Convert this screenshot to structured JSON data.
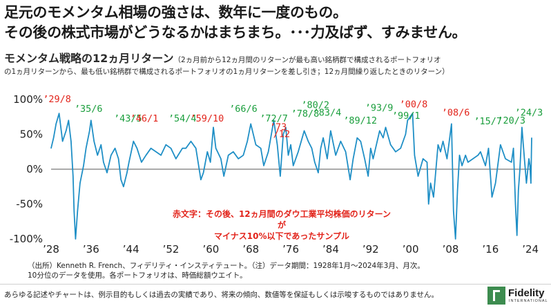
{
  "headline": {
    "line1": "足元のモメンタム相場の強さは、数年に一度のもの。",
    "line2": "その後の株式市場がどうなるかはまちまち。･･･力及ばず、すみません。"
  },
  "subtitle": {
    "main": "モメンタム戦略の12ヵ月リターン",
    "note_line1": "（2ヵ月前から12ヵ月間のリターンが最も高い銘柄群で構成されるポートフォリオ",
    "note_line2": "の1ヵ月リターンから、最も低い銘柄群で構成されるポートフォリオの1ヵ月リターンを差し引き；12ヵ月間繰り返したときのリターン）"
  },
  "callout": {
    "line1": "赤文字：その後、12ヵ月間のダウ工業平均株価のリターンが",
    "line2": "マイナス10%以下であったサンプル"
  },
  "source": {
    "line1": "（出所）Kenneth R. French、フィデリティ・インスティテュート。（注）データ期間：1928年1月～2024年3月、月次。",
    "line2": "10分位のデータを使用。各ポートフォリオは、時価総額ウエイト。"
  },
  "disclaimer": "あらゆる記述やチャートは、例示目的もしくは過去の実績であり、将来の傾向、数値等を保証もしくは示唆するものではありません。",
  "logo": {
    "name": "Fidelity",
    "sub": "INTERNATIONAL"
  },
  "colors": {
    "line": "#1f8fc6",
    "red": "#e2231a",
    "green": "#1a9e3c",
    "axis": "#555555"
  },
  "chart_data": {
    "type": "line",
    "title": "モメンタム戦略の12ヵ月リターン",
    "xlabel": "",
    "ylabel": "",
    "xlim": [
      1928,
      2024.25
    ],
    "ylim": [
      -100,
      100
    ],
    "y_ticks": [
      100,
      50,
      0,
      -50,
      -100
    ],
    "y_tick_labels": [
      "100%",
      "50%",
      "0%",
      "-50%",
      "-100%"
    ],
    "x_ticks": [
      1928,
      1936,
      1944,
      1952,
      1960,
      1968,
      1976,
      1984,
      1992,
      2000,
      2008,
      2016,
      2024
    ],
    "x_tick_labels": [
      "’28",
      "’36",
      "’44",
      "’52",
      "’60",
      "’68",
      "’76",
      "’84",
      "’92",
      "’00",
      "’08",
      "’16",
      "’24"
    ],
    "series": [
      {
        "name": "モメンタム戦略の12ヵ月リターン (%)",
        "x": [
          1928,
          1928.5,
          1929,
          1929.6,
          1930.3,
          1931,
          1931.5,
          1932,
          1932.4,
          1932.6,
          1932.9,
          1933.3,
          1933.8,
          1934.5,
          1935,
          1935.7,
          1936,
          1936.6,
          1937.3,
          1938,
          1938.5,
          1939.2,
          1940,
          1940.8,
          1941.5,
          1942,
          1942.5,
          1943.2,
          1943.6,
          1944.5,
          1945.2,
          1946.1,
          1947,
          1948,
          1949,
          1950,
          1951,
          1952,
          1953,
          1954.3,
          1955,
          1956,
          1957,
          1958,
          1958.5,
          1959.3,
          1959.9,
          1960.5,
          1961,
          1962,
          1962.6,
          1963.5,
          1964.5,
          1965.5,
          1966.5,
          1967.3,
          1968,
          1969,
          1970,
          1970.6,
          1971.5,
          1972.6,
          1973.3,
          1973.9,
          1974.5,
          1975,
          1975.5,
          1976,
          1976.5,
          1977.5,
          1978.7,
          1979.5,
          1980.2,
          1980.8,
          1981.5,
          1982,
          1982.5,
          1983.3,
          1984,
          1985,
          1986,
          1987,
          1987.9,
          1988.5,
          1989.3,
          1990,
          1990.8,
          1991.5,
          1992,
          1992.5,
          1993.8,
          1994.5,
          1995,
          1996,
          1997,
          1998,
          1999,
          1999.4,
          1999.9,
          2000.4,
          2000.8,
          2001.5,
          2002.5,
          2003.3,
          2003.6,
          2004,
          2004.6,
          2005.5,
          2006,
          2006.5,
          2007.3,
          2008.2,
          2008.6,
          2009,
          2009.4,
          2009.8,
          2010.3,
          2011,
          2011.5,
          2012.5,
          2013.5,
          2014,
          2015,
          2015.6,
          2016.3,
          2017,
          2018,
          2019,
          2020.2,
          2020.6,
          2021,
          2021.3,
          2021.6,
          2021.9,
          2022.3,
          2022.8,
          2023.2,
          2023.7,
          2023.9,
          2024.1,
          2024.25
        ],
        "values": [
          30,
          45,
          65,
          80,
          40,
          55,
          70,
          40,
          -10,
          -60,
          -100,
          -60,
          -20,
          5,
          30,
          55,
          70,
          40,
          20,
          35,
          10,
          -5,
          20,
          30,
          15,
          -15,
          -25,
          -5,
          10,
          40,
          30,
          10,
          20,
          30,
          25,
          20,
          35,
          30,
          15,
          30,
          30,
          40,
          30,
          -15,
          -5,
          25,
          10,
          60,
          30,
          15,
          -10,
          20,
          25,
          15,
          20,
          40,
          65,
          35,
          30,
          5,
          25,
          70,
          35,
          -10,
          50,
          60,
          20,
          35,
          5,
          25,
          55,
          40,
          30,
          10,
          -5,
          30,
          45,
          15,
          55,
          20,
          40,
          25,
          -15,
          15,
          45,
          40,
          15,
          -10,
          30,
          15,
          55,
          45,
          60,
          35,
          25,
          30,
          50,
          70,
          75,
          80,
          20,
          -10,
          15,
          10,
          -50,
          -20,
          -40,
          35,
          25,
          40,
          15,
          65,
          -60,
          -100,
          -30,
          20,
          5,
          20,
          10,
          15,
          20,
          25,
          5,
          30,
          -40,
          -20,
          35,
          15,
          10,
          30,
          -50,
          -95,
          -30,
          0,
          60,
          15,
          -20,
          15,
          5,
          -20,
          45
        ]
      }
    ],
    "annotations": [
      {
        "label": "’29/8",
        "year": 1929.6,
        "color": "red"
      },
      {
        "label": "’35/6",
        "year": 1935.5,
        "color": "green"
      },
      {
        "label": "’43/5",
        "year": 1943.4,
        "color": "green"
      },
      {
        "label": "’46/1",
        "year": 1946.1,
        "color": "red"
      },
      {
        "label": "’54/4",
        "year": 1954.3,
        "color": "green"
      },
      {
        "label": "’59/10",
        "year": 1959.8,
        "color": "red"
      },
      {
        "label": "’66/6",
        "year": 1966.5,
        "color": "green"
      },
      {
        "label": "’72/7",
        "year": 1972.6,
        "color": "green"
      },
      {
        "label": "’78/8",
        "year": 1978.6,
        "color": "green"
      },
      {
        "label": "’73",
        "year": 1973.5,
        "color": "red"
      },
      {
        "label": "/12",
        "year": 1973.9,
        "color": "red"
      },
      {
        "label": "’80/2",
        "year": 1980.1,
        "color": "green"
      },
      {
        "label": "’83/4",
        "year": 1983.3,
        "color": "green"
      },
      {
        "label": "’89/12",
        "year": 1989.9,
        "color": "green"
      },
      {
        "label": "’93/9",
        "year": 1993.7,
        "color": "green"
      },
      {
        "label": "’99/1",
        "year": 1999.1,
        "color": "green"
      },
      {
        "label": "’00/8",
        "year": 2000.6,
        "color": "red"
      },
      {
        "label": "’08/6",
        "year": 2008.5,
        "color": "red"
      },
      {
        "label": "’15/7",
        "year": 2015.5,
        "color": "green"
      },
      {
        "label": "’20/3",
        "year": 2020.2,
        "color": "green"
      },
      {
        "label": "’24/3",
        "year": 2024.25,
        "color": "green"
      }
    ]
  }
}
